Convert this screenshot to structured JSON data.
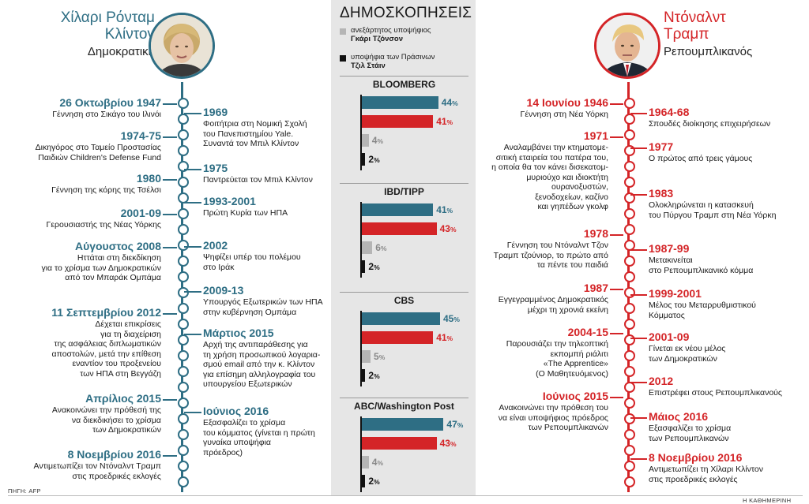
{
  "colors": {
    "clinton": "#2e6e84",
    "trump": "#d42427",
    "johnson": "#b5b5b5",
    "stein": "#111111"
  },
  "clinton": {
    "name": "Χίλαρι Ρόνταμ\nΚλίντον",
    "party": "Δημοκρατική",
    "events_left": [
      {
        "year": "26 Οκτωβρίου 1947",
        "text": "Γέννηση στο Σικάγο του Ιλινόι"
      },
      {
        "year": "1974-75",
        "text": "Δικηγόρος στο Ταμείο Προστασίας\nΠαιδιών Children's Defense Fund"
      },
      {
        "year": "1980",
        "text": "Γέννηση της κόρης της Τσέλσι"
      },
      {
        "year": "2001-09",
        "text": "Γερουσιαστής της Νέας Υόρκης"
      },
      {
        "year": "Αύγουστος 2008",
        "text": "Ηττάται στη διεκδίκηση\nγια το χρίσμα των Δημοκρατικών\nαπό τον Μπαράκ Ομπάμα"
      },
      {
        "year": "11 Σεπτεμβρίου 2012",
        "text": "Δέχεται επικρίσεις\nγια τη διαχείριση\nτης ασφάλειας διπλωματικών\nαποστολών, μετά την επίθεση\nεναντίον του προξενείου\nτων ΗΠΑ στη Βεγγάζη"
      },
      {
        "year": "Απρίλιος 2015",
        "text": "Ανακοινώνει την πρόθεσή της\nνα διεκδικήσει το χρίσμα\nτων Δημοκρατικών"
      },
      {
        "year": "8 Νοεμβρίου 2016",
        "text": "Αντιμετωπίζει τον Ντόναλντ Τραμπ\nστις προεδρικές εκλογές"
      }
    ],
    "events_right": [
      {
        "year": "1969",
        "text": "Φοιτήτρια στη Νομική Σχολή\nτου Πανεπιστημίου Yale.\nΣυναντά τον Μπιλ Κλίντον"
      },
      {
        "year": "1975",
        "text": "Παντρεύεται τον Μπιλ Κλίντον"
      },
      {
        "year": "1993-2001",
        "text": "Πρώτη Κυρία των ΗΠΑ"
      },
      {
        "year": "2002",
        "text": "Ψηφίζει υπέρ του πολέμου\nστο Ιράκ"
      },
      {
        "year": "2009-13",
        "text": "Υπουργός Εξωτερικών των ΗΠΑ\nστην κυβέρνηση Ομπάμα"
      },
      {
        "year": "Μάρτιος 2015",
        "text": "Αρχή της αντιπαράθεσης για\nτη χρήση προσωπικού λογαρια-\nσμού email από την κ. Κλίντον\nγια επίσημη αλληλογραφία του\nυπουργείου Εξωτερικών"
      },
      {
        "year": "Ιούνιος 2016",
        "text": "Εξασφαλίζει το χρίσμα\nτου κόμματος (γίνεται η πρώτη\nγυναίκα υποψήφια\nπρόεδρος)"
      }
    ]
  },
  "trump": {
    "name": "Ντόναλντ\nΤραμπ",
    "party": "Ρεπουμπλικανός",
    "events_left": [
      {
        "year": "14 Ιουνίου 1946",
        "text": "Γέννηση στη Νέα Υόρκη"
      },
      {
        "year": "1971",
        "text": "Αναλαμβάνει την κτηματομε-\nσιτική εταιρεία του πατέρα του,\nη οποία θα τον κάνει δισεκατομ-\nμυριούχο και ιδιοκτήτη\nουρανοξυστών,\nξενοδοχείων, καζίνο\nκαι γηπέδων γκολφ"
      },
      {
        "year": "1978",
        "text": "Γέννηση του Ντόναλντ Τζον\nΤραμπ τζούνιορ, το πρώτο από\nτα πέντε του παιδιά"
      },
      {
        "year": "1987",
        "text": "Εγγεγραμμένος Δημοκρατικός\nμέχρι τη χρονιά εκείνη"
      },
      {
        "year": "2004-15",
        "text": "Παρουσιάζει την τηλεοπτική\nεκπομπή ριάλιτι\n«The Apprentice»\n(Ο Μαθητευόμενος)"
      },
      {
        "year": "Ιούνιος 2015",
        "text": "Ανακοινώνει την πρόθεση του\nνα είναι υποψήφιος πρόεδρος\nτων Ρεπουμπλικανών"
      }
    ],
    "events_right": [
      {
        "year": "1964-68",
        "text": "Σπουδές διοίκησης επιχειρήσεων"
      },
      {
        "year": "1977",
        "text": "Ο πρώτος από τρεις γάμους"
      },
      {
        "year": "1983",
        "text": "Ολοκληρώνεται η κατασκευή\nτου Πύργου Τραμπ στη Νέα Υόρκη"
      },
      {
        "year": "1987-99",
        "text": "Μετακινείται\nστο Ρεπουμπλικανικό κόμμα"
      },
      {
        "year": "1999-2001",
        "text": "Μέλος του Μεταρρυθμιστικού\nΚόμματος"
      },
      {
        "year": "2001-09",
        "text": "Γίνεται εκ νέου μέλος\nτων Δημοκρατικών"
      },
      {
        "year": "2012",
        "text": "Επιστρέφει στους Ρεπουμπλικανούς"
      },
      {
        "year": "Μάιος 2016",
        "text": "Εξασφαλίζει το χρίσμα\nτων Ρεπουμπλικανών"
      },
      {
        "year": "8 Νοεμβρίου 2016",
        "text": "Αντιμετωπίζει τη Χίλαρι Κλίντον\nστις προεδρικές εκλογές"
      }
    ]
  },
  "polls": {
    "title": "ΔΗΜΟΣΚΟΠΗΣΕΙΣ",
    "legend": [
      {
        "line1": "ανεξάρτητος υποψήφιος",
        "line2": "Γκάρι Τζόνσον"
      },
      {
        "line1": "υποψήφια των Πράσινων",
        "line2": "Τζιλ Στάιν"
      }
    ]
  },
  "chart_data": [
    {
      "type": "bar",
      "title": "BLOOMBERG",
      "values": [
        44,
        41,
        4,
        2
      ]
    },
    {
      "type": "bar",
      "title": "IBD/TIPP",
      "values": [
        41,
        43,
        6,
        2
      ]
    },
    {
      "type": "bar",
      "title": "CBS",
      "values": [
        45,
        41,
        5,
        2
      ]
    },
    {
      "type": "bar",
      "title": "ABC/Washington Post",
      "values": [
        47,
        43,
        4,
        2
      ]
    }
  ],
  "footer": {
    "source": "ΠΗΓΗ: AFP",
    "publisher": "Η ΚΑΘΗΜΕΡΙΝΗ"
  }
}
